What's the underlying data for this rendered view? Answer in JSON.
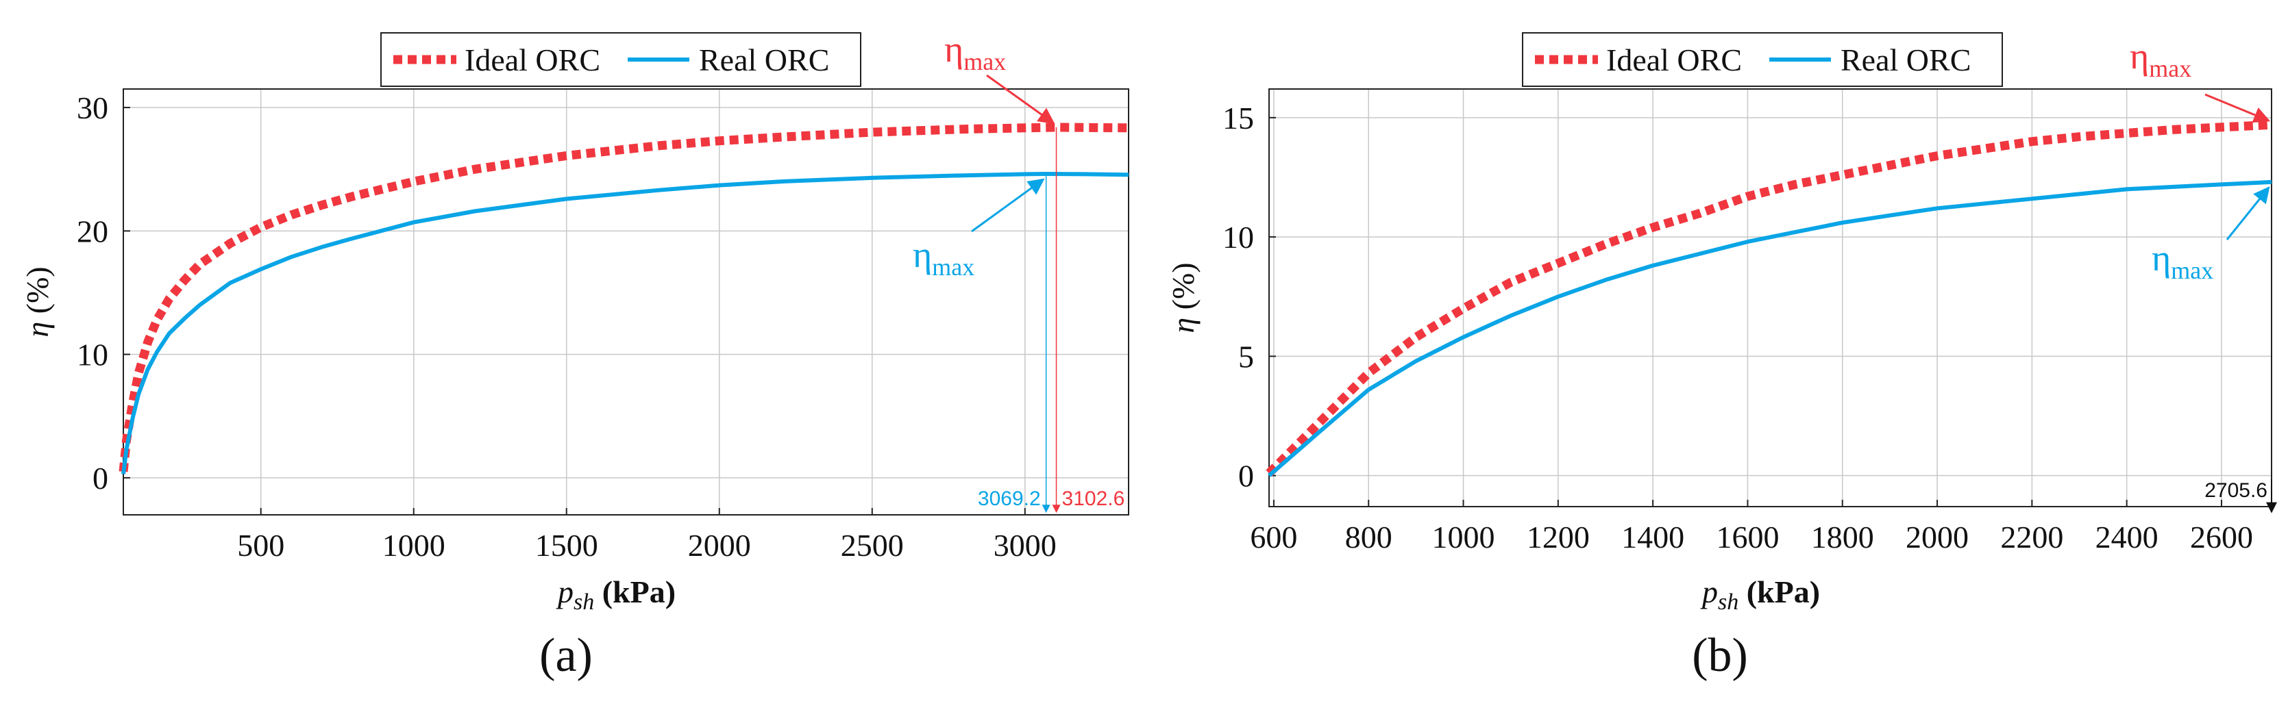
{
  "colors": {
    "ideal": "#f0373f",
    "real": "#0aa5e6",
    "grid": "#c8c8c8",
    "axis": "#222222",
    "marker_neutral": "#111111"
  },
  "chart_data": [
    {
      "panel_label": "(a)",
      "type": "line",
      "xlabel_var": "p",
      "xlabel_sub": "sh",
      "xlabel_unit": " (kPa)",
      "ylabel_var": "η",
      "ylabel_unit": " (%)",
      "xlim": [
        50,
        3339
      ],
      "ylim": [
        -3,
        31.5
      ],
      "xticks": [
        500,
        1000,
        1500,
        2000,
        2500,
        3000
      ],
      "yticks": [
        0,
        10,
        20,
        30
      ],
      "legend": [
        "Ideal ORC",
        "Real ORC"
      ],
      "series": [
        {
          "name": "Ideal ORC",
          "style": "dashed",
          "x": [
            50,
            60,
            80,
            100,
            130,
            160,
            200,
            250,
            300,
            400,
            500,
            600,
            700,
            800,
            1000,
            1200,
            1500,
            1800,
            2000,
            2200,
            2500,
            2800,
            3000,
            3102.6,
            3200,
            3339
          ],
          "y": [
            0.5,
            3.0,
            6.0,
            8.5,
            11.0,
            12.8,
            14.5,
            16.0,
            17.3,
            19.0,
            20.3,
            21.3,
            22.1,
            22.8,
            24.0,
            25.0,
            26.1,
            26.9,
            27.3,
            27.6,
            28.0,
            28.25,
            28.35,
            28.4,
            28.38,
            28.35
          ]
        },
        {
          "name": "Real ORC",
          "style": "solid",
          "x": [
            50,
            60,
            80,
            100,
            130,
            160,
            200,
            250,
            300,
            400,
            500,
            600,
            700,
            800,
            1000,
            1200,
            1500,
            1800,
            2000,
            2200,
            2500,
            2800,
            3000,
            3069.2,
            3200,
            3339
          ],
          "y": [
            0.3,
            2.3,
            4.8,
            6.8,
            8.8,
            10.2,
            11.7,
            12.9,
            14.0,
            15.8,
            16.9,
            17.9,
            18.7,
            19.4,
            20.7,
            21.6,
            22.6,
            23.3,
            23.7,
            24.0,
            24.3,
            24.5,
            24.6,
            24.62,
            24.6,
            24.55
          ]
        }
      ],
      "annotations": {
        "ideal": {
          "text": "η",
          "sub": "max",
          "x": 3102.6,
          "y": 28.4,
          "value_label": "3102.6"
        },
        "real": {
          "text": "η",
          "sub": "max",
          "x": 3069.2,
          "y": 24.62,
          "value_label": "3069.2"
        }
      }
    },
    {
      "panel_label": "(b)",
      "type": "line",
      "xlabel_var": "p",
      "xlabel_sub": "sh",
      "xlabel_unit": " (kPa)",
      "ylabel_var": "η",
      "ylabel_unit": " (%)",
      "xlim": [
        590,
        2705.6
      ],
      "ylim": [
        -1.3,
        16.2
      ],
      "xticks": [
        600,
        800,
        1000,
        1200,
        1400,
        1600,
        1800,
        2000,
        2200,
        2400,
        2600
      ],
      "yticks": [
        0,
        5,
        10,
        15
      ],
      "legend": [
        "Ideal ORC",
        "Real ORC"
      ],
      "series": [
        {
          "name": "Ideal ORC",
          "style": "dashed",
          "x": [
            590,
            700,
            800,
            900,
            1000,
            1100,
            1200,
            1300,
            1400,
            1500,
            1600,
            1700,
            1800,
            1900,
            2000,
            2100,
            2200,
            2300,
            2400,
            2500,
            2600,
            2705.6
          ],
          "y": [
            0.1,
            2.3,
            4.3,
            5.8,
            7.0,
            8.1,
            8.9,
            9.7,
            10.4,
            11.0,
            11.7,
            12.2,
            12.6,
            13.0,
            13.4,
            13.7,
            14.0,
            14.2,
            14.35,
            14.5,
            14.6,
            14.7
          ]
        },
        {
          "name": "Real ORC",
          "style": "solid",
          "x": [
            590,
            700,
            800,
            900,
            1000,
            1100,
            1200,
            1300,
            1400,
            1500,
            1600,
            1700,
            1800,
            1900,
            2000,
            2100,
            2200,
            2300,
            2400,
            2500,
            2600,
            2705.6
          ],
          "y": [
            0.0,
            1.9,
            3.6,
            4.8,
            5.8,
            6.7,
            7.5,
            8.2,
            8.8,
            9.3,
            9.8,
            10.2,
            10.6,
            10.9,
            11.2,
            11.4,
            11.6,
            11.8,
            12.0,
            12.1,
            12.2,
            12.3
          ]
        }
      ],
      "annotations": {
        "ideal": {
          "text": "η",
          "sub": "max",
          "x": 2705.6,
          "y": 14.7
        },
        "real": {
          "text": "η",
          "sub": "max",
          "x": 2705.6,
          "y": 12.3
        },
        "marker_value_label": "2705.6"
      }
    }
  ]
}
